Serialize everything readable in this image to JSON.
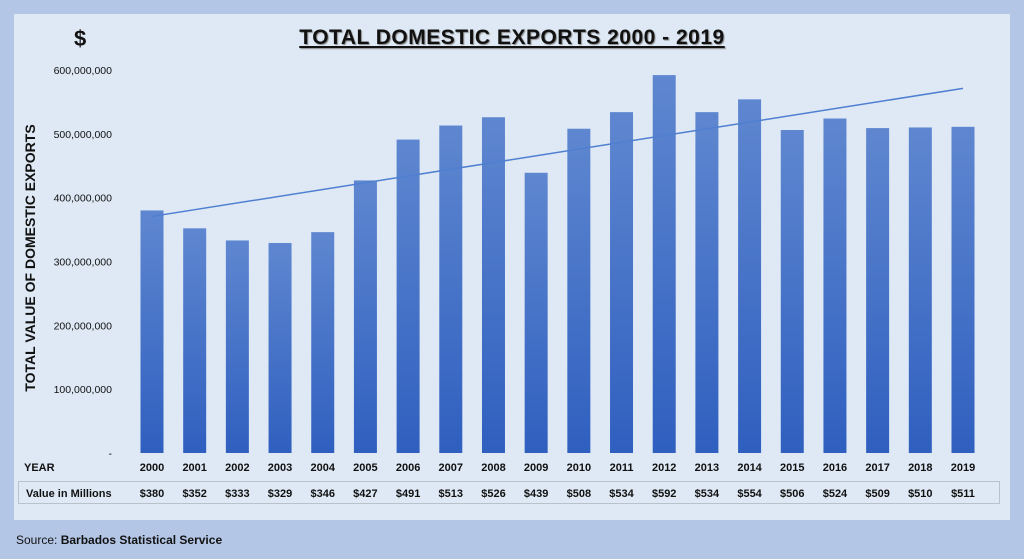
{
  "chart_data": {
    "type": "bar",
    "title": "TOTAL DOMESTIC EXPORTS 2000 - 2019",
    "unit_label": "$",
    "ylabel": "TOTAL VALUE OF DOMESTIC EXPORTS",
    "xlabel": "YEAR",
    "ylim": [
      0,
      600000000
    ],
    "yticks": [
      "-",
      "100,000,000",
      "200,000,000",
      "300,000,000",
      "400,000,000",
      "500,000,000",
      "600,000,000"
    ],
    "categories": [
      "2000",
      "2001",
      "2002",
      "2003",
      "2004",
      "2005",
      "2006",
      "2007",
      "2008",
      "2009",
      "2010",
      "2011",
      "2012",
      "2013",
      "2014",
      "2015",
      "2016",
      "2017",
      "2018",
      "2019"
    ],
    "values": [
      380000000,
      352000000,
      333000000,
      329000000,
      346000000,
      427000000,
      491000000,
      513000000,
      526000000,
      439000000,
      508000000,
      534000000,
      592000000,
      534000000,
      554000000,
      506000000,
      524000000,
      509000000,
      510000000,
      511000000
    ],
    "trendline": "linear",
    "grid": false,
    "bar_color": "#4472c4",
    "table_row_label": "Value in Millions",
    "table_values": [
      "$380",
      "$352",
      "$333",
      "$329",
      "$346",
      "$427",
      "$491",
      "$513",
      "$526",
      "$439",
      "$508",
      "$534",
      "$592",
      "$534",
      "$554",
      "$506",
      "$524",
      "$509",
      "$510",
      "$511"
    ]
  },
  "source_label": "Source:",
  "source_name": "Barbados Statistical Service"
}
